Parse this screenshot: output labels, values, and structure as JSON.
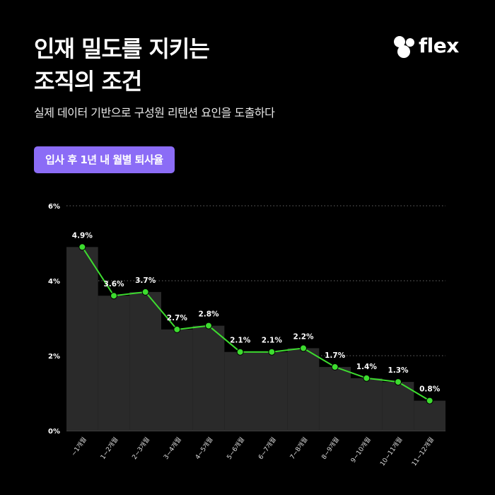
{
  "header": {
    "title_line1": "인재 밀도를 지키는",
    "title_line2": "조직의 조건",
    "subtitle": "실제 데이터 기반으로 구성원 리텐션 요인을 도출하다"
  },
  "brand": {
    "name": "flex"
  },
  "badge": {
    "label": "입사 후 1년 내 월별 퇴사율"
  },
  "colors": {
    "background": "#000000",
    "accent": "#8b6cf6",
    "line": "#3ddc2f",
    "bar": "#2a2a2a"
  },
  "chart_data": {
    "type": "line",
    "categories": [
      "~1개월",
      "1~2개월",
      "2~3개월",
      "3~4개월",
      "4~5개월",
      "5~6개월",
      "6~7개월",
      "7~8개월",
      "8~9개월",
      "9~10개월",
      "10~11개월",
      "11~12개월"
    ],
    "values": [
      4.9,
      3.6,
      3.7,
      2.7,
      2.8,
      2.1,
      2.1,
      2.2,
      1.7,
      1.4,
      1.3,
      0.8
    ],
    "data_labels": [
      "4.9%",
      "3.6%",
      "3.7%",
      "2.7%",
      "2.8%",
      "2.1%",
      "2.1%",
      "2.2%",
      "1.7%",
      "1.4%",
      "1.3%",
      "0.8%"
    ],
    "y_ticks": [
      0,
      2,
      4,
      6
    ],
    "y_tick_labels": [
      "0%",
      "2%",
      "4%",
      "6%"
    ],
    "ylim": [
      0,
      6
    ],
    "grid": "dotted horizontal",
    "background_bars": "step area"
  }
}
